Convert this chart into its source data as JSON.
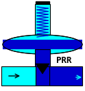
{
  "bg_color": "#c0c0c0",
  "cyan_light": "#00ffff",
  "blue_dark": "#0000cd",
  "blue_mid": "#1e90ff",
  "black": "#000000",
  "white": "#ffffff",
  "label": "PRR",
  "label_fontsize": 9,
  "figsize": [
    1.24,
    1.33
  ],
  "dpi": 100
}
